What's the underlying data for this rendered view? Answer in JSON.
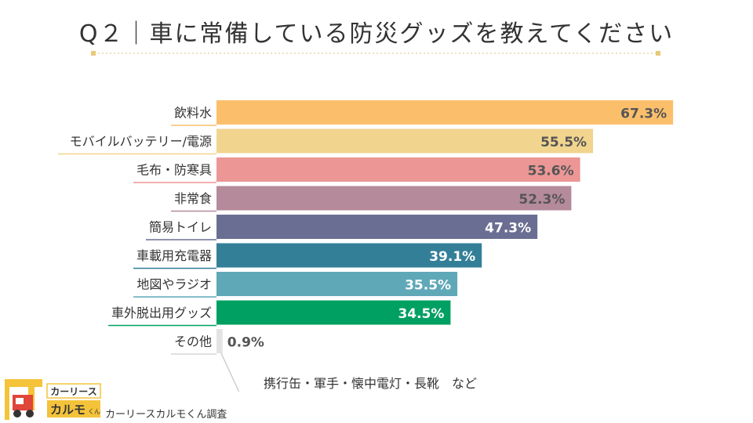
{
  "title": "Q２｜車に常備している防災グッズを教えてください",
  "chart_data": {
    "type": "bar",
    "orientation": "horizontal",
    "categories": [
      "飲料水",
      "モバイルバッテリー/電源",
      "毛布・防寒具",
      "非常食",
      "簡易トイレ",
      "車載用充電器",
      "地図やラジオ",
      "車外脱出用グッズ",
      "その他"
    ],
    "values": [
      67.3,
      55.5,
      53.6,
      52.3,
      47.3,
      39.1,
      35.5,
      34.5,
      0.9
    ],
    "value_labels": [
      "67.3%",
      "55.5%",
      "53.6%",
      "52.3%",
      "47.3%",
      "39.1%",
      "35.5%",
      "34.5%",
      "0.9%"
    ],
    "colors": [
      "#fbbf6b",
      "#f1d48e",
      "#ec9696",
      "#b58a9b",
      "#6b6e93",
      "#347f98",
      "#5fa8b8",
      "#00a062",
      "#e3e3e3"
    ],
    "label_colors": [
      "#555555",
      "#555555",
      "#555555",
      "#555555",
      "#ffffff",
      "#ffffff",
      "#ffffff",
      "#ffffff",
      "#555555"
    ],
    "xlim": [
      0,
      100
    ],
    "grid": false,
    "legend": "none",
    "annotation": "携行缶・軍手・懐中電灯・長靴　など"
  },
  "logo": {
    "line1": "カーリース",
    "line2": "カルモ",
    "line2_small": "くん"
  },
  "source": "カーリースカルモくん調査"
}
